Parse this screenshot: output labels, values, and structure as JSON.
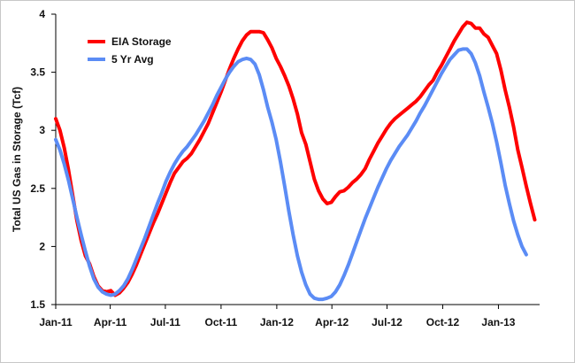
{
  "chart_data": {
    "type": "line",
    "title": "",
    "xlabel": "",
    "ylabel": "Total US Gas in Storage (Tcf)",
    "ylim": [
      1.5,
      4
    ],
    "xlim": [
      "2011-01-01",
      "2013-03-10"
    ],
    "x_ticks": [
      {
        "date": "2011-01-01",
        "label": "Jan-11"
      },
      {
        "date": "2011-04-01",
        "label": "Apr-11"
      },
      {
        "date": "2011-07-01",
        "label": "Jul-11"
      },
      {
        "date": "2011-10-01",
        "label": "Oct-11"
      },
      {
        "date": "2012-01-01",
        "label": "Jan-12"
      },
      {
        "date": "2012-04-01",
        "label": "Apr-12"
      },
      {
        "date": "2012-07-01",
        "label": "Jul-12"
      },
      {
        "date": "2012-10-01",
        "label": "Oct-12"
      },
      {
        "date": "2013-01-01",
        "label": "Jan-13"
      }
    ],
    "y_ticks": [
      {
        "value": 1.5,
        "label": "1.5"
      },
      {
        "value": 2,
        "label": "2"
      },
      {
        "value": 2.5,
        "label": "2.5"
      },
      {
        "value": 3,
        "label": "3"
      },
      {
        "value": 3.5,
        "label": "3.5"
      },
      {
        "value": 4,
        "label": "4"
      }
    ],
    "grid": false,
    "legend_position": "top-left",
    "series": [
      {
        "name": "EIA Storage",
        "color": "#ff0000",
        "points": [
          [
            "2011-01-01",
            3.1
          ],
          [
            "2011-01-08",
            3.0
          ],
          [
            "2011-01-15",
            2.85
          ],
          [
            "2011-01-22",
            2.66
          ],
          [
            "2011-01-29",
            2.44
          ],
          [
            "2011-02-05",
            2.22
          ],
          [
            "2011-02-12",
            2.05
          ],
          [
            "2011-02-19",
            1.92
          ],
          [
            "2011-02-26",
            1.85
          ],
          [
            "2011-03-05",
            1.74
          ],
          [
            "2011-03-12",
            1.66
          ],
          [
            "2011-03-19",
            1.62
          ],
          [
            "2011-03-26",
            1.61
          ],
          [
            "2011-04-02",
            1.62
          ],
          [
            "2011-04-09",
            1.58
          ],
          [
            "2011-04-16",
            1.6
          ],
          [
            "2011-04-23",
            1.64
          ],
          [
            "2011-04-30",
            1.69
          ],
          [
            "2011-05-07",
            1.76
          ],
          [
            "2011-05-14",
            1.84
          ],
          [
            "2011-05-21",
            1.93
          ],
          [
            "2011-05-28",
            2.02
          ],
          [
            "2011-06-04",
            2.11
          ],
          [
            "2011-06-11",
            2.2
          ],
          [
            "2011-06-18",
            2.28
          ],
          [
            "2011-06-25",
            2.37
          ],
          [
            "2011-07-02",
            2.46
          ],
          [
            "2011-07-09",
            2.55
          ],
          [
            "2011-07-16",
            2.63
          ],
          [
            "2011-07-23",
            2.68
          ],
          [
            "2011-07-30",
            2.73
          ],
          [
            "2011-08-06",
            2.76
          ],
          [
            "2011-08-13",
            2.8
          ],
          [
            "2011-08-20",
            2.86
          ],
          [
            "2011-08-27",
            2.92
          ],
          [
            "2011-09-03",
            2.99
          ],
          [
            "2011-09-10",
            3.06
          ],
          [
            "2011-09-17",
            3.15
          ],
          [
            "2011-09-24",
            3.24
          ],
          [
            "2011-10-01",
            3.33
          ],
          [
            "2011-10-08",
            3.43
          ],
          [
            "2011-10-15",
            3.53
          ],
          [
            "2011-10-22",
            3.62
          ],
          [
            "2011-10-29",
            3.7
          ],
          [
            "2011-11-05",
            3.77
          ],
          [
            "2011-11-12",
            3.82
          ],
          [
            "2011-11-19",
            3.85
          ],
          [
            "2011-11-26",
            3.85
          ],
          [
            "2011-12-03",
            3.85
          ],
          [
            "2011-12-10",
            3.84
          ],
          [
            "2011-12-17",
            3.78
          ],
          [
            "2011-12-24",
            3.71
          ],
          [
            "2011-12-31",
            3.62
          ],
          [
            "2012-01-07",
            3.55
          ],
          [
            "2012-01-14",
            3.47
          ],
          [
            "2012-01-21",
            3.38
          ],
          [
            "2012-01-28",
            3.27
          ],
          [
            "2012-02-04",
            3.14
          ],
          [
            "2012-02-11",
            2.98
          ],
          [
            "2012-02-18",
            2.88
          ],
          [
            "2012-02-25",
            2.73
          ],
          [
            "2012-03-03",
            2.58
          ],
          [
            "2012-03-10",
            2.48
          ],
          [
            "2012-03-17",
            2.41
          ],
          [
            "2012-03-24",
            2.37
          ],
          [
            "2012-03-31",
            2.38
          ],
          [
            "2012-04-07",
            2.43
          ],
          [
            "2012-04-14",
            2.47
          ],
          [
            "2012-04-21",
            2.48
          ],
          [
            "2012-04-28",
            2.51
          ],
          [
            "2012-05-05",
            2.55
          ],
          [
            "2012-05-12",
            2.58
          ],
          [
            "2012-05-19",
            2.62
          ],
          [
            "2012-05-26",
            2.67
          ],
          [
            "2012-06-02",
            2.75
          ],
          [
            "2012-06-09",
            2.82
          ],
          [
            "2012-06-16",
            2.89
          ],
          [
            "2012-06-23",
            2.95
          ],
          [
            "2012-06-30",
            3.01
          ],
          [
            "2012-07-07",
            3.06
          ],
          [
            "2012-07-14",
            3.1
          ],
          [
            "2012-07-21",
            3.13
          ],
          [
            "2012-07-28",
            3.16
          ],
          [
            "2012-08-04",
            3.19
          ],
          [
            "2012-08-11",
            3.22
          ],
          [
            "2012-08-18",
            3.25
          ],
          [
            "2012-08-25",
            3.29
          ],
          [
            "2012-09-01",
            3.34
          ],
          [
            "2012-09-08",
            3.39
          ],
          [
            "2012-09-15",
            3.43
          ],
          [
            "2012-09-22",
            3.5
          ],
          [
            "2012-09-29",
            3.56
          ],
          [
            "2012-10-06",
            3.63
          ],
          [
            "2012-10-13",
            3.7
          ],
          [
            "2012-10-20",
            3.77
          ],
          [
            "2012-10-27",
            3.83
          ],
          [
            "2012-11-03",
            3.89
          ],
          [
            "2012-11-10",
            3.93
          ],
          [
            "2012-11-17",
            3.92
          ],
          [
            "2012-11-24",
            3.88
          ],
          [
            "2012-12-01",
            3.88
          ],
          [
            "2012-12-08",
            3.83
          ],
          [
            "2012-12-15",
            3.8
          ],
          [
            "2012-12-22",
            3.73
          ],
          [
            "2012-12-29",
            3.66
          ],
          [
            "2013-01-05",
            3.52
          ],
          [
            "2013-01-12",
            3.35
          ],
          [
            "2013-01-19",
            3.2
          ],
          [
            "2013-01-26",
            3.03
          ],
          [
            "2013-02-02",
            2.83
          ],
          [
            "2013-02-09",
            2.68
          ],
          [
            "2013-02-16",
            2.52
          ],
          [
            "2013-02-23",
            2.37
          ],
          [
            "2013-03-02",
            2.23
          ]
        ]
      },
      {
        "name": "5 Yr Avg",
        "color": "#5b8cf5",
        "points": [
          [
            "2011-01-01",
            2.92
          ],
          [
            "2011-01-08",
            2.83
          ],
          [
            "2011-01-15",
            2.71
          ],
          [
            "2011-01-22",
            2.57
          ],
          [
            "2011-01-29",
            2.41
          ],
          [
            "2011-02-05",
            2.25
          ],
          [
            "2011-02-12",
            2.1
          ],
          [
            "2011-02-19",
            1.96
          ],
          [
            "2011-02-26",
            1.83
          ],
          [
            "2011-03-05",
            1.72
          ],
          [
            "2011-03-12",
            1.65
          ],
          [
            "2011-03-19",
            1.61
          ],
          [
            "2011-03-26",
            1.59
          ],
          [
            "2011-04-02",
            1.58
          ],
          [
            "2011-04-09",
            1.59
          ],
          [
            "2011-04-16",
            1.62
          ],
          [
            "2011-04-23",
            1.66
          ],
          [
            "2011-04-30",
            1.72
          ],
          [
            "2011-05-07",
            1.8
          ],
          [
            "2011-05-14",
            1.89
          ],
          [
            "2011-05-21",
            1.98
          ],
          [
            "2011-05-28",
            2.07
          ],
          [
            "2011-06-04",
            2.17
          ],
          [
            "2011-06-11",
            2.27
          ],
          [
            "2011-06-18",
            2.37
          ],
          [
            "2011-06-25",
            2.46
          ],
          [
            "2011-07-02",
            2.56
          ],
          [
            "2011-07-09",
            2.64
          ],
          [
            "2011-07-16",
            2.71
          ],
          [
            "2011-07-23",
            2.77
          ],
          [
            "2011-07-30",
            2.82
          ],
          [
            "2011-08-06",
            2.86
          ],
          [
            "2011-08-13",
            2.91
          ],
          [
            "2011-08-20",
            2.96
          ],
          [
            "2011-08-27",
            3.02
          ],
          [
            "2011-09-03",
            3.08
          ],
          [
            "2011-09-10",
            3.15
          ],
          [
            "2011-09-17",
            3.22
          ],
          [
            "2011-09-24",
            3.3
          ],
          [
            "2011-10-01",
            3.37
          ],
          [
            "2011-10-08",
            3.44
          ],
          [
            "2011-10-15",
            3.5
          ],
          [
            "2011-10-22",
            3.55
          ],
          [
            "2011-10-29",
            3.59
          ],
          [
            "2011-11-05",
            3.61
          ],
          [
            "2011-11-12",
            3.62
          ],
          [
            "2011-11-19",
            3.61
          ],
          [
            "2011-11-26",
            3.57
          ],
          [
            "2011-12-03",
            3.48
          ],
          [
            "2011-12-10",
            3.35
          ],
          [
            "2011-12-17",
            3.2
          ],
          [
            "2011-12-24",
            3.07
          ],
          [
            "2011-12-31",
            2.92
          ],
          [
            "2012-01-07",
            2.73
          ],
          [
            "2012-01-14",
            2.52
          ],
          [
            "2012-01-21",
            2.3
          ],
          [
            "2012-01-28",
            2.1
          ],
          [
            "2012-02-04",
            1.92
          ],
          [
            "2012-02-11",
            1.78
          ],
          [
            "2012-02-18",
            1.67
          ],
          [
            "2012-02-25",
            1.59
          ],
          [
            "2012-03-03",
            1.555
          ],
          [
            "2012-03-10",
            1.545
          ],
          [
            "2012-03-17",
            1.545
          ],
          [
            "2012-03-24",
            1.555
          ],
          [
            "2012-03-31",
            1.57
          ],
          [
            "2012-04-07",
            1.61
          ],
          [
            "2012-04-14",
            1.67
          ],
          [
            "2012-04-21",
            1.75
          ],
          [
            "2012-04-28",
            1.84
          ],
          [
            "2012-05-05",
            1.94
          ],
          [
            "2012-05-12",
            2.04
          ],
          [
            "2012-05-19",
            2.14
          ],
          [
            "2012-05-26",
            2.24
          ],
          [
            "2012-06-02",
            2.33
          ],
          [
            "2012-06-09",
            2.42
          ],
          [
            "2012-06-16",
            2.51
          ],
          [
            "2012-06-23",
            2.59
          ],
          [
            "2012-06-30",
            2.67
          ],
          [
            "2012-07-07",
            2.74
          ],
          [
            "2012-07-14",
            2.8
          ],
          [
            "2012-07-21",
            2.86
          ],
          [
            "2012-07-28",
            2.91
          ],
          [
            "2012-08-04",
            2.96
          ],
          [
            "2012-08-11",
            3.02
          ],
          [
            "2012-08-18",
            3.08
          ],
          [
            "2012-08-25",
            3.15
          ],
          [
            "2012-09-01",
            3.21
          ],
          [
            "2012-09-08",
            3.28
          ],
          [
            "2012-09-15",
            3.35
          ],
          [
            "2012-09-22",
            3.42
          ],
          [
            "2012-09-29",
            3.49
          ],
          [
            "2012-10-06",
            3.55
          ],
          [
            "2012-10-13",
            3.61
          ],
          [
            "2012-10-20",
            3.65
          ],
          [
            "2012-10-27",
            3.69
          ],
          [
            "2012-11-03",
            3.7
          ],
          [
            "2012-11-10",
            3.7
          ],
          [
            "2012-11-17",
            3.66
          ],
          [
            "2012-11-24",
            3.58
          ],
          [
            "2012-12-01",
            3.47
          ],
          [
            "2012-12-08",
            3.33
          ],
          [
            "2012-12-15",
            3.2
          ],
          [
            "2012-12-22",
            3.06
          ],
          [
            "2012-12-29",
            2.9
          ],
          [
            "2013-01-05",
            2.72
          ],
          [
            "2013-01-12",
            2.53
          ],
          [
            "2013-01-19",
            2.37
          ],
          [
            "2013-01-26",
            2.22
          ],
          [
            "2013-02-02",
            2.1
          ],
          [
            "2013-02-09",
            2.0
          ],
          [
            "2013-02-16",
            1.93
          ]
        ]
      }
    ]
  }
}
